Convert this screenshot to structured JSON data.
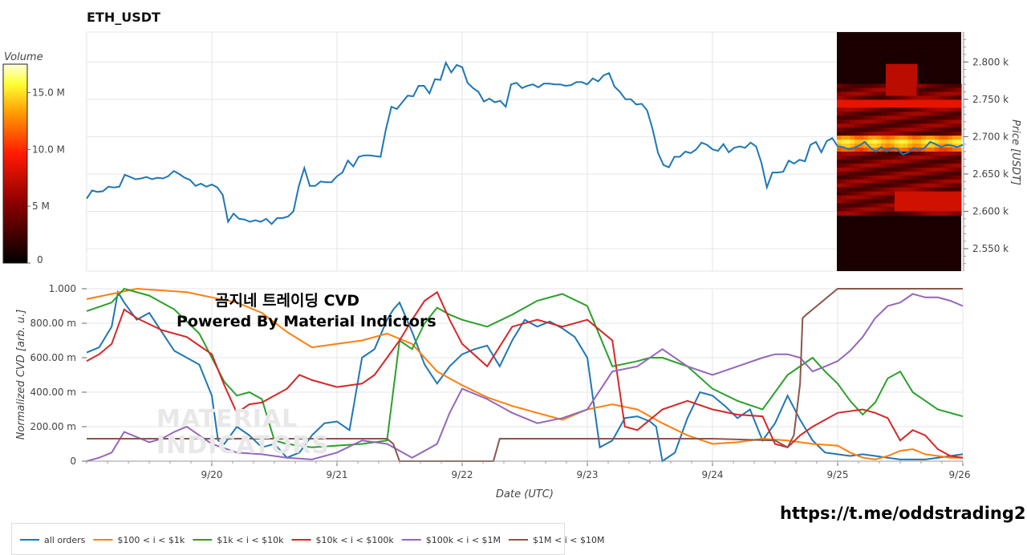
{
  "title": "ETH_USDT",
  "overlay_title": "곰지네 트레이딩 CVD",
  "overlay_subtitle": "Powered By Material Indictors",
  "watermark": [
    "MATERIAL",
    "INDICATORS"
  ],
  "link_text": "https://t.me/oddstrading2",
  "chart_data": [
    {
      "type": "line",
      "name": "price",
      "ylabel": "Price [USDT]",
      "y_ticks": [
        "2.550 k",
        "2.600 k",
        "2.650 k",
        "2.700 k",
        "2.750 k",
        "2.800 k"
      ],
      "y_tick_values": [
        2550,
        2600,
        2650,
        2700,
        2750,
        2800
      ],
      "ylim": [
        2520,
        2840
      ],
      "xlim": [
        0,
        7
      ],
      "x_note": "days from 9/19 00:00 UTC",
      "y": [
        2617,
        2628,
        2626,
        2627,
        2633,
        2632,
        2633,
        2649,
        2646,
        2643,
        2644,
        2646,
        2643,
        2645,
        2644,
        2647,
        2654,
        2650,
        2645,
        2642,
        2634,
        2637,
        2633,
        2636,
        2632,
        2622,
        2586,
        2597,
        2590,
        2589,
        2586,
        2588,
        2586,
        2590,
        2583,
        2591,
        2591,
        2593,
        2600,
        2634,
        2658,
        2634,
        2634,
        2640,
        2639,
        2639,
        2647,
        2652,
        2668,
        2660,
        2673,
        2675,
        2675,
        2674,
        2673,
        2710,
        2740,
        2737,
        2746,
        2755,
        2754,
        2768,
        2768,
        2758,
        2777,
        2776,
        2799,
        2786,
        2796,
        2793,
        2772,
        2765,
        2760,
        2747,
        2751,
        2746,
        2748,
        2740,
        2770,
        2772,
        2765,
        2768,
        2770,
        2766,
        2771,
        2771,
        2770,
        2770,
        2768,
        2769,
        2773,
        2773,
        2770,
        2778,
        2774,
        2782,
        2785,
        2767,
        2760,
        2750,
        2750,
        2743,
        2744,
        2735,
        2710,
        2678,
        2662,
        2659,
        2673,
        2673,
        2680,
        2678,
        2683,
        2692,
        2689,
        2683,
        2681,
        2690,
        2679,
        2685,
        2687,
        2685,
        2692,
        2687,
        2665,
        2632,
        2652,
        2652,
        2653,
        2668,
        2664,
        2669,
        2667,
        2689,
        2693,
        2679,
        2694,
        2698,
        2687,
        2686,
        2683,
        2685,
        2688,
        2693,
        2685,
        2680,
        2686,
        2680,
        2685,
        2683,
        2676,
        2679,
        2685,
        2682,
        2685,
        2693,
        2690,
        2686,
        2689,
        2688,
        2686,
        2689
      ]
    },
    {
      "type": "heatmap",
      "name": "volume profile",
      "colorbar_label": "Volume",
      "colorbar_ticks": [
        "0",
        "5 M",
        "10.0 M",
        "15.0 M"
      ],
      "colorbar_tick_values": [
        0,
        5,
        10,
        15
      ],
      "colorbar_max": 17.5
    },
    {
      "type": "line",
      "ylabel": "Normalized CVD [arb. u.]",
      "xlabel": "Date (UTC)",
      "x_ticks": [
        "9/20",
        "9/21",
        "9/22",
        "9/23",
        "9/24",
        "9/25",
        "9/26"
      ],
      "x_tick_values": [
        1,
        2,
        3,
        4,
        5,
        6,
        7
      ],
      "xlim": [
        0,
        7
      ],
      "y_ticks": [
        "0",
        "200.00 m",
        "400.00 m",
        "600.00 m",
        "800.00 m",
        "1.000"
      ],
      "y_tick_values": [
        0,
        0.2,
        0.4,
        0.6,
        0.8,
        1.0
      ],
      "ylim": [
        0,
        1
      ],
      "legend_position": "bottom",
      "series": [
        {
          "name": "all orders",
          "color": "#1f77b4",
          "x": [
            0,
            0.1,
            0.2,
            0.25,
            0.3,
            0.4,
            0.5,
            0.6,
            0.7,
            0.8,
            0.9,
            1.0,
            1.05,
            1.1,
            1.2,
            1.3,
            1.4,
            1.5,
            1.6,
            1.7,
            1.8,
            1.9,
            2.0,
            2.1,
            2.2,
            2.3,
            2.4,
            2.45,
            2.5,
            2.6,
            2.7,
            2.8,
            2.9,
            3.0,
            3.1,
            3.2,
            3.3,
            3.4,
            3.5,
            3.6,
            3.7,
            3.8,
            3.9,
            4.0,
            4.1,
            4.2,
            4.3,
            4.4,
            4.5,
            4.55,
            4.6,
            4.7,
            4.8,
            4.9,
            5.0,
            5.1,
            5.2,
            5.3,
            5.4,
            5.5,
            5.55,
            5.6,
            5.7,
            5.8,
            5.9,
            6.0,
            6.1,
            6.2,
            6.3,
            6.4,
            6.5,
            6.6,
            6.7,
            6.8,
            6.9,
            7.0
          ],
          "y": [
            0.63,
            0.66,
            0.78,
            0.98,
            0.92,
            0.82,
            0.86,
            0.75,
            0.64,
            0.6,
            0.56,
            0.38,
            0.12,
            0.1,
            0.2,
            0.15,
            0.08,
            0.1,
            0.02,
            0.05,
            0.15,
            0.22,
            0.23,
            0.18,
            0.6,
            0.65,
            0.82,
            0.88,
            0.92,
            0.75,
            0.56,
            0.45,
            0.55,
            0.62,
            0.65,
            0.67,
            0.55,
            0.7,
            0.82,
            0.78,
            0.81,
            0.77,
            0.72,
            0.6,
            0.08,
            0.12,
            0.25,
            0.26,
            0.23,
            0.2,
            0.0,
            0.05,
            0.25,
            0.4,
            0.38,
            0.32,
            0.25,
            0.3,
            0.12,
            0.22,
            0.3,
            0.38,
            0.24,
            0.12,
            0.05,
            0.04,
            0.03,
            0.04,
            0.03,
            0.02,
            0.01,
            0.01,
            0.01,
            0.02,
            0.03,
            0.04
          ]
        },
        {
          "name": "$100 < i < $1k",
          "color": "#ff7f0e",
          "x": [
            0,
            0.2,
            0.4,
            0.6,
            0.8,
            1.0,
            1.2,
            1.4,
            1.6,
            1.8,
            2.0,
            2.2,
            2.4,
            2.6,
            2.8,
            3.0,
            3.2,
            3.4,
            3.6,
            3.8,
            4.0,
            4.2,
            4.4,
            4.6,
            4.8,
            5.0,
            5.2,
            5.4,
            5.6,
            5.8,
            6.0,
            6.1,
            6.2,
            6.3,
            6.4,
            6.5,
            6.6,
            6.7,
            6.8,
            6.9,
            7.0
          ],
          "y": [
            0.94,
            0.97,
            1.0,
            0.99,
            0.98,
            0.95,
            0.92,
            0.86,
            0.75,
            0.66,
            0.68,
            0.7,
            0.74,
            0.68,
            0.52,
            0.44,
            0.37,
            0.32,
            0.28,
            0.24,
            0.3,
            0.33,
            0.3,
            0.22,
            0.15,
            0.1,
            0.11,
            0.13,
            0.12,
            0.1,
            0.09,
            0.05,
            0.02,
            0.01,
            0.03,
            0.06,
            0.07,
            0.04,
            0.03,
            0.02,
            0.02
          ]
        },
        {
          "name": "$1k < i < $10k",
          "color": "#2ca02c",
          "x": [
            0,
            0.2,
            0.3,
            0.5,
            0.7,
            0.9,
            1.0,
            1.1,
            1.2,
            1.3,
            1.4,
            1.5,
            1.6,
            1.8,
            2.0,
            2.2,
            2.4,
            2.5,
            2.6,
            2.7,
            2.8,
            2.9,
            3.0,
            3.2,
            3.4,
            3.6,
            3.8,
            4.0,
            4.2,
            4.4,
            4.5,
            4.6,
            4.8,
            5.0,
            5.2,
            5.4,
            5.6,
            5.8,
            5.9,
            6.0,
            6.1,
            6.2,
            6.3,
            6.4,
            6.5,
            6.6,
            6.8,
            7.0
          ],
          "y": [
            0.87,
            0.92,
            1.0,
            0.96,
            0.88,
            0.74,
            0.6,
            0.46,
            0.38,
            0.4,
            0.36,
            0.12,
            0.1,
            0.08,
            0.09,
            0.1,
            0.12,
            0.7,
            0.65,
            0.8,
            0.89,
            0.85,
            0.82,
            0.78,
            0.85,
            0.93,
            0.97,
            0.9,
            0.55,
            0.58,
            0.6,
            0.6,
            0.55,
            0.42,
            0.35,
            0.3,
            0.5,
            0.6,
            0.52,
            0.45,
            0.35,
            0.27,
            0.34,
            0.48,
            0.52,
            0.4,
            0.3,
            0.26
          ]
        },
        {
          "name": "$10k < i < $100k",
          "color": "#d62728",
          "x": [
            0,
            0.1,
            0.2,
            0.3,
            0.4,
            0.6,
            0.8,
            1.0,
            1.1,
            1.2,
            1.3,
            1.4,
            1.5,
            1.6,
            1.7,
            1.8,
            2.0,
            2.2,
            2.3,
            2.4,
            2.5,
            2.6,
            2.7,
            2.8,
            2.9,
            3.0,
            3.2,
            3.4,
            3.6,
            3.8,
            4.0,
            4.2,
            4.3,
            4.4,
            4.6,
            4.8,
            5.0,
            5.2,
            5.4,
            5.5,
            5.6,
            5.7,
            5.8,
            5.9,
            6.0,
            6.2,
            6.3,
            6.4,
            6.5,
            6.6,
            6.7,
            6.8,
            6.9,
            7.0
          ],
          "y": [
            0.58,
            0.62,
            0.68,
            0.88,
            0.83,
            0.76,
            0.72,
            0.62,
            0.44,
            0.28,
            0.33,
            0.34,
            0.38,
            0.42,
            0.5,
            0.47,
            0.43,
            0.45,
            0.5,
            0.6,
            0.7,
            0.82,
            0.93,
            0.98,
            0.82,
            0.68,
            0.55,
            0.78,
            0.82,
            0.78,
            0.82,
            0.7,
            0.2,
            0.18,
            0.3,
            0.35,
            0.3,
            0.27,
            0.26,
            0.1,
            0.08,
            0.15,
            0.2,
            0.24,
            0.28,
            0.3,
            0.28,
            0.25,
            0.12,
            0.18,
            0.15,
            0.07,
            0.03,
            0.02
          ]
        },
        {
          "name": "$100k < i < $1M",
          "color": "#9467bd",
          "x": [
            0,
            0.1,
            0.2,
            0.3,
            0.4,
            0.5,
            0.6,
            0.7,
            0.8,
            1.0,
            1.2,
            1.4,
            1.6,
            1.8,
            2.0,
            2.2,
            2.4,
            2.6,
            2.8,
            2.9,
            3.0,
            3.2,
            3.4,
            3.6,
            3.8,
            4.0,
            4.2,
            4.4,
            4.6,
            4.8,
            5.0,
            5.2,
            5.4,
            5.5,
            5.6,
            5.7,
            5.8,
            5.9,
            6.0,
            6.1,
            6.2,
            6.3,
            6.4,
            6.5,
            6.6,
            6.7,
            6.8,
            6.9,
            7.0
          ],
          "y": [
            0.0,
            0.02,
            0.05,
            0.17,
            0.14,
            0.11,
            0.13,
            0.17,
            0.2,
            0.1,
            0.05,
            0.04,
            0.02,
            0.01,
            0.05,
            0.12,
            0.1,
            0.02,
            0.1,
            0.28,
            0.42,
            0.36,
            0.28,
            0.22,
            0.25,
            0.3,
            0.52,
            0.55,
            0.65,
            0.55,
            0.5,
            0.55,
            0.6,
            0.62,
            0.62,
            0.6,
            0.52,
            0.55,
            0.58,
            0.64,
            0.72,
            0.83,
            0.9,
            0.92,
            0.97,
            0.95,
            0.95,
            0.93,
            0.9
          ]
        },
        {
          "name": "$1M < i < $10M",
          "color": "#8c564b",
          "x": [
            0,
            1.4,
            2.0,
            2.4,
            2.45,
            2.5,
            3.0,
            3.2,
            3.25,
            3.3,
            4.0,
            4.5,
            4.6,
            4.7,
            4.8,
            4.85,
            4.9,
            5.0,
            5.5,
            5.6,
            5.65,
            5.7,
            5.72,
            5.75,
            6.0,
            7.0
          ],
          "y": [
            0.13,
            0.13,
            0.13,
            0.13,
            0.1,
            0.0,
            0.0,
            0.0,
            0.0,
            0.13,
            0.13,
            0.13,
            0.13,
            0.13,
            0.13,
            0.13,
            0.13,
            0.13,
            0.12,
            0.08,
            0.15,
            0.45,
            0.83,
            0.85,
            1.0,
            1.0
          ]
        }
      ]
    }
  ]
}
